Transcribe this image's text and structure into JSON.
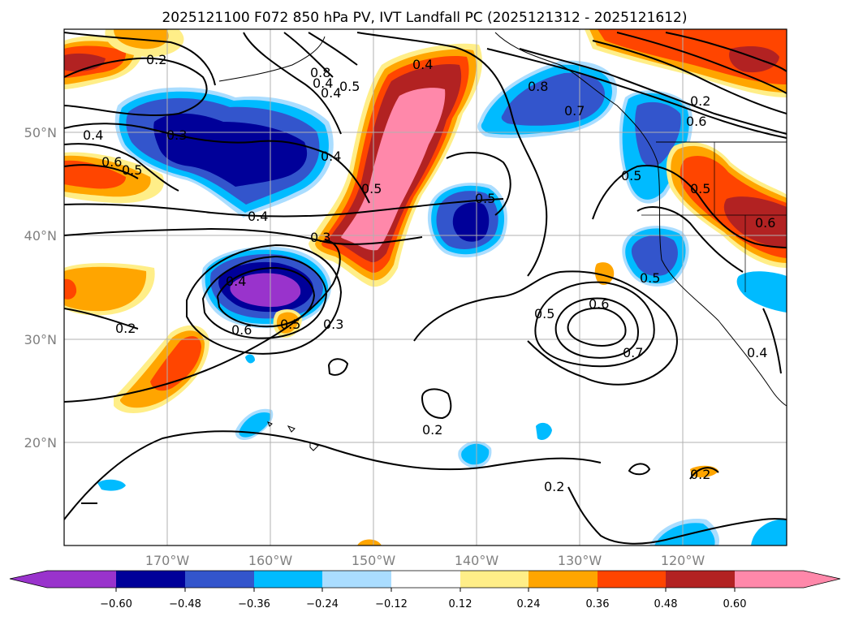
{
  "title": "2025121100 F072 850 hPa PV, IVT Landfall PC (2025121312 - 2025121612)",
  "map": {
    "lon_labels": [
      "170°W",
      "160°W",
      "150°W",
      "140°W",
      "130°W",
      "120°W"
    ],
    "lat_labels": [
      "50°N",
      "40°N",
      "30°N",
      "20°N"
    ],
    "contour_labels": [
      "0.2",
      "0.4",
      "0.4",
      "0.5",
      "0.6",
      "0.8",
      "0.3",
      "0.4",
      "0.5",
      "0.3",
      "0.4",
      "0.6",
      "0.5",
      "0.3",
      "0.2",
      "0.5",
      "0.2",
      "0.5",
      "0.6",
      "0.7",
      "0.2",
      "0.8",
      "0.7",
      "0.4",
      "0.5",
      "0.5",
      "0.6",
      "0.2",
      "0.4",
      "0.5",
      "0.4",
      "0.4",
      "0.5",
      "0.2",
      "0.6"
    ]
  },
  "colorbar": {
    "ticks": [
      "−0.60",
      "−0.48",
      "−0.36",
      "−0.24",
      "−0.12",
      "0.12",
      "0.24",
      "0.36",
      "0.48",
      "0.60"
    ],
    "colors": [
      "#9933cc",
      "#000099",
      "#3355cc",
      "#00bbff",
      "#aaddff",
      "#ffffff",
      "#ffee88",
      "#ffa500",
      "#ff4500",
      "#b22222",
      "#ff88aa"
    ]
  },
  "colors": {
    "map_background": "#ffffff",
    "gridline": "#b0b0b0",
    "contour": "#000000"
  }
}
